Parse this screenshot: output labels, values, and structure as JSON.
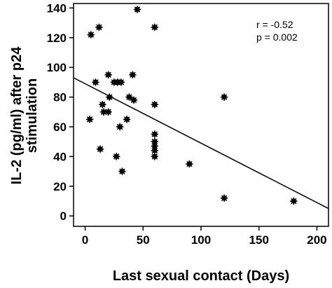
{
  "chart_data": {
    "type": "scatter",
    "title": "",
    "xlabel": "Last  sexual contact (Days)",
    "ylabel_lines": [
      "IL-2 (pg/ml) after p24",
      "stimulation"
    ],
    "xlim": [
      -10,
      210
    ],
    "ylim": [
      -7,
      143
    ],
    "x_ticks": [
      0,
      50,
      100,
      150,
      200
    ],
    "y_ticks": [
      0,
      20,
      40,
      60,
      80,
      100,
      120,
      140
    ],
    "annotations": [
      "r = -0.52",
      "p = 0.002"
    ],
    "regression_line": {
      "x": [
        -10,
        210
      ],
      "y": [
        93,
        5
      ]
    },
    "grid": false,
    "marker_color": "#000000",
    "points": [
      {
        "x": 5,
        "y": 122
      },
      {
        "x": 12,
        "y": 127
      },
      {
        "x": 45,
        "y": 139
      },
      {
        "x": 60,
        "y": 127
      },
      {
        "x": 9,
        "y": 90
      },
      {
        "x": 20,
        "y": 95
      },
      {
        "x": 25,
        "y": 90
      },
      {
        "x": 28,
        "y": 90
      },
      {
        "x": 31,
        "y": 90
      },
      {
        "x": 41,
        "y": 95
      },
      {
        "x": 21,
        "y": 80
      },
      {
        "x": 38,
        "y": 80
      },
      {
        "x": 42,
        "y": 78
      },
      {
        "x": 15,
        "y": 75
      },
      {
        "x": 60,
        "y": 75
      },
      {
        "x": 16,
        "y": 70
      },
      {
        "x": 20,
        "y": 70
      },
      {
        "x": 4,
        "y": 65
      },
      {
        "x": 36,
        "y": 65
      },
      {
        "x": 30,
        "y": 60
      },
      {
        "x": 60,
        "y": 55
      },
      {
        "x": 60,
        "y": 50
      },
      {
        "x": 60,
        "y": 47
      },
      {
        "x": 60,
        "y": 44
      },
      {
        "x": 60,
        "y": 40
      },
      {
        "x": 13,
        "y": 45
      },
      {
        "x": 27,
        "y": 40
      },
      {
        "x": 32,
        "y": 30
      },
      {
        "x": 90,
        "y": 35
      },
      {
        "x": 120,
        "y": 80
      },
      {
        "x": 120,
        "y": 12
      },
      {
        "x": 180,
        "y": 10
      }
    ]
  }
}
